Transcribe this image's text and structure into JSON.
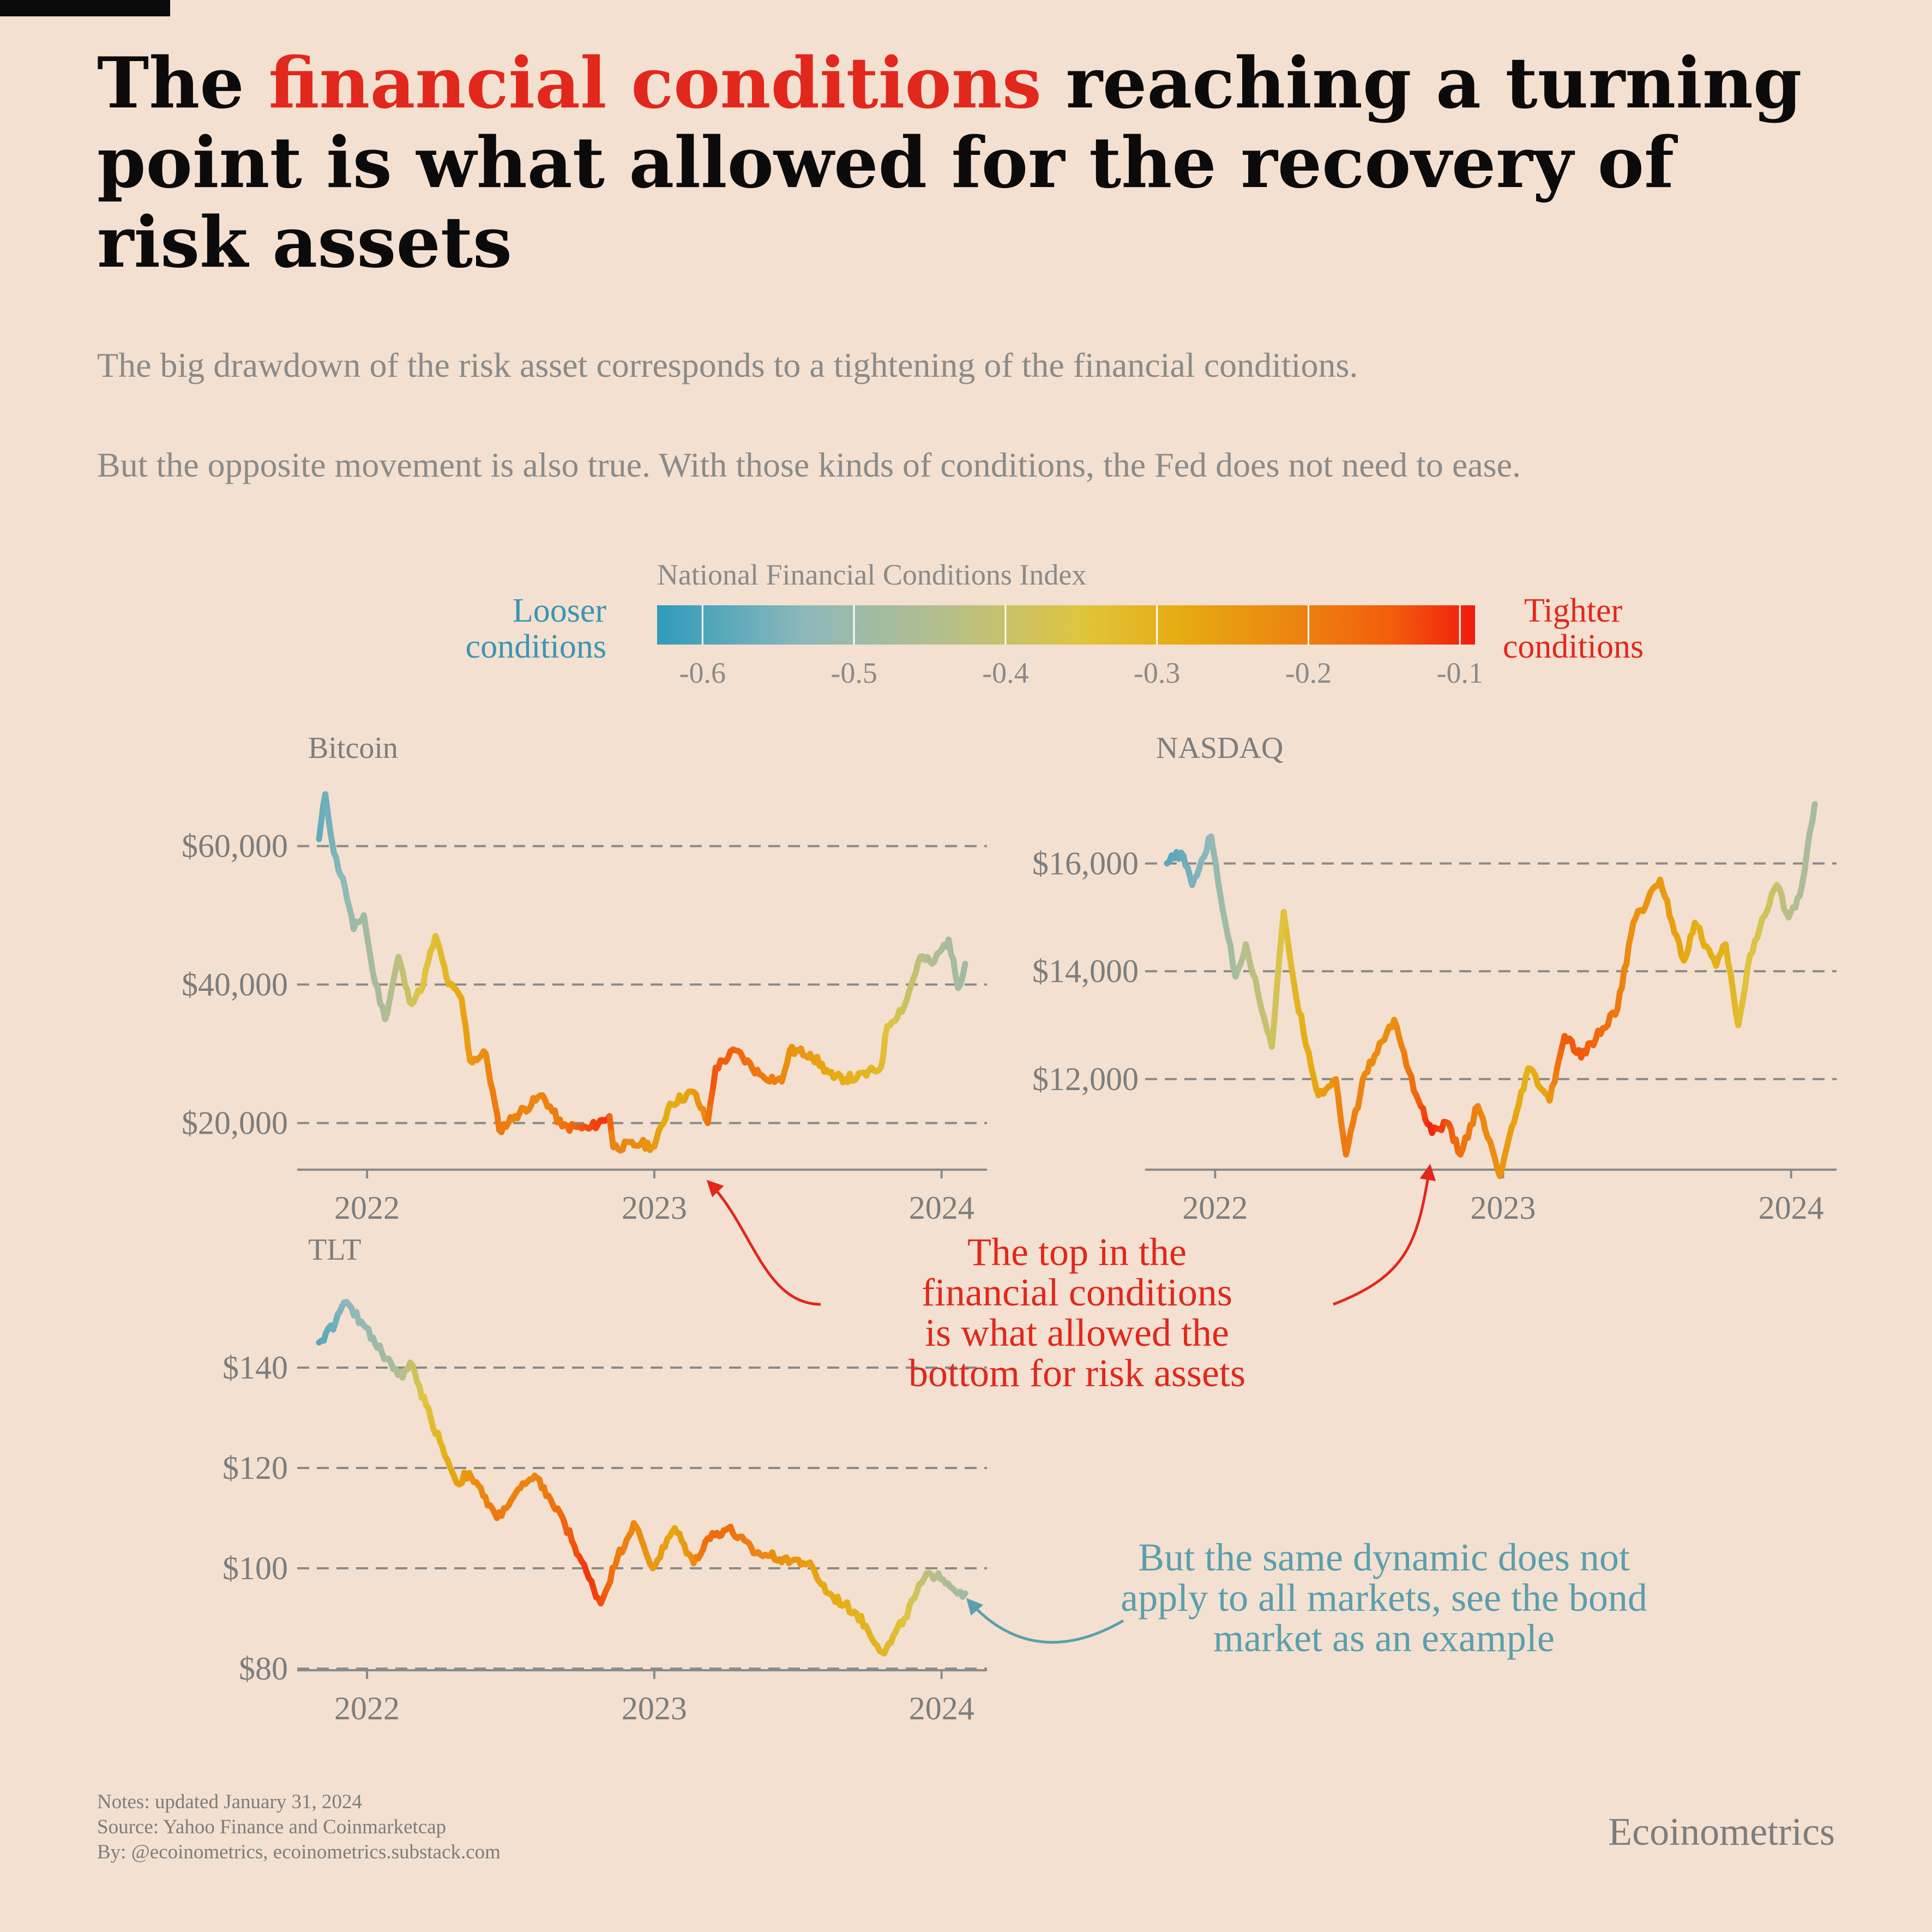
{
  "header": {
    "title_before": "The ",
    "title_highlight": "financial conditions",
    "title_after": " reaching a turning point is what allowed for the recovery of risk assets",
    "subtitle_1": "The big drawdown of the risk asset corresponds to a tightening of the financial conditions.",
    "subtitle_2": "But the opposite movement is also true. With those kinds of conditions, the Fed does not need to ease."
  },
  "colors": {
    "background": "#f3e0d0",
    "highlight_red": "#e2271c",
    "teal": "#5a9fae",
    "loose_label": "#3a95b4",
    "text_gray": "#7d7d7d",
    "scale": [
      "#2f9bbb",
      "#8db8bb",
      "#b7bf88",
      "#e0c43e",
      "#e6ab11",
      "#ec8410",
      "#f25c0c",
      "#f21a0e"
    ]
  },
  "footer": {
    "notes": "Notes: updated January 31, 2024",
    "source": "Source: Yahoo Finance and Coinmarketcap",
    "by": "By: @ecoinometrics, ecoinometrics.substack.com",
    "brand": "Ecoinometrics"
  },
  "chart_data": {
    "type": "line",
    "color_scale": {
      "title": "National Financial Conditions Index",
      "min": -0.63,
      "max": -0.09,
      "ticks": [
        -0.6,
        -0.5,
        -0.4,
        -0.3,
        -0.2,
        -0.1
      ],
      "tick_labels": [
        "-0.6",
        "-0.5",
        "-0.4",
        "-0.3",
        "-0.2",
        "-0.1"
      ],
      "low_label": "Looser conditions",
      "high_label": "Tighter conditions"
    },
    "annotations": {
      "red": "The top in the financial conditions is what allowed the bottom for risk assets",
      "teal": "But the same dynamic does not apply to all markets, see the bond market as an example"
    },
    "panels": [
      {
        "name": "Bitcoin",
        "x_range": [
          "2021-11-01",
          "2024-01-31"
        ],
        "ylim": [
          13500,
          68000
        ],
        "y_ticks": [
          20000,
          40000,
          60000
        ],
        "y_tick_labels": [
          "$20,000",
          "$40,000",
          "$60,000"
        ],
        "x_ticks": [
          "2022-01-01",
          "2023-01-01",
          "2024-01-01"
        ],
        "x_tick_labels": [
          "2022",
          "2023",
          "2024"
        ],
        "series": [
          {
            "date": "2021-11-01",
            "value": 61000,
            "nfci": -0.59
          },
          {
            "date": "2021-11-09",
            "value": 67500,
            "nfci": -0.58
          },
          {
            "date": "2021-11-20",
            "value": 59000,
            "nfci": -0.57
          },
          {
            "date": "2021-12-04",
            "value": 54000,
            "nfci": -0.55
          },
          {
            "date": "2021-12-15",
            "value": 48000,
            "nfci": -0.53
          },
          {
            "date": "2021-12-28",
            "value": 50000,
            "nfci": -0.52
          },
          {
            "date": "2022-01-08",
            "value": 42000,
            "nfci": -0.51
          },
          {
            "date": "2022-01-24",
            "value": 35000,
            "nfci": -0.5
          },
          {
            "date": "2022-02-10",
            "value": 44000,
            "nfci": -0.47
          },
          {
            "date": "2022-02-24",
            "value": 37500,
            "nfci": -0.44
          },
          {
            "date": "2022-03-10",
            "value": 39000,
            "nfci": -0.41
          },
          {
            "date": "2022-03-29",
            "value": 47000,
            "nfci": -0.38
          },
          {
            "date": "2022-04-15",
            "value": 40000,
            "nfci": -0.35
          },
          {
            "date": "2022-05-01",
            "value": 38000,
            "nfci": -0.32
          },
          {
            "date": "2022-05-12",
            "value": 29000,
            "nfci": -0.29
          },
          {
            "date": "2022-06-01",
            "value": 30000,
            "nfci": -0.26
          },
          {
            "date": "2022-06-18",
            "value": 19000,
            "nfci": -0.22
          },
          {
            "date": "2022-07-08",
            "value": 21000,
            "nfci": -0.24
          },
          {
            "date": "2022-08-12",
            "value": 24000,
            "nfci": -0.25
          },
          {
            "date": "2022-09-06",
            "value": 19500,
            "nfci": -0.22
          },
          {
            "date": "2022-10-10",
            "value": 19200,
            "nfci": -0.15
          },
          {
            "date": "2022-11-05",
            "value": 21000,
            "nfci": -0.12
          },
          {
            "date": "2022-11-10",
            "value": 16500,
            "nfci": -0.24
          },
          {
            "date": "2022-12-15",
            "value": 17000,
            "nfci": -0.26
          },
          {
            "date": "2023-01-01",
            "value": 16600,
            "nfci": -0.28
          },
          {
            "date": "2023-01-21",
            "value": 22800,
            "nfci": -0.33
          },
          {
            "date": "2023-02-20",
            "value": 24500,
            "nfci": -0.3
          },
          {
            "date": "2023-03-10",
            "value": 20000,
            "nfci": -0.24
          },
          {
            "date": "2023-03-20",
            "value": 28000,
            "nfci": -0.16
          },
          {
            "date": "2023-04-14",
            "value": 30500,
            "nfci": -0.18
          },
          {
            "date": "2023-05-15",
            "value": 27000,
            "nfci": -0.22
          },
          {
            "date": "2023-06-12",
            "value": 26000,
            "nfci": -0.24
          },
          {
            "date": "2023-06-22",
            "value": 30500,
            "nfci": -0.27
          },
          {
            "date": "2023-07-18",
            "value": 30000,
            "nfci": -0.29
          },
          {
            "date": "2023-08-17",
            "value": 26500,
            "nfci": -0.32
          },
          {
            "date": "2023-09-15",
            "value": 26500,
            "nfci": -0.34
          },
          {
            "date": "2023-10-16",
            "value": 28000,
            "nfci": -0.36
          },
          {
            "date": "2023-10-24",
            "value": 34000,
            "nfci": -0.39
          },
          {
            "date": "2023-11-15",
            "value": 37000,
            "nfci": -0.43
          },
          {
            "date": "2023-12-05",
            "value": 44000,
            "nfci": -0.46
          },
          {
            "date": "2023-12-20",
            "value": 43000,
            "nfci": -0.49
          },
          {
            "date": "2024-01-10",
            "value": 46500,
            "nfci": -0.5
          },
          {
            "date": "2024-01-22",
            "value": 39500,
            "nfci": -0.51
          },
          {
            "date": "2024-01-31",
            "value": 43000,
            "nfci": -0.52
          }
        ]
      },
      {
        "name": "NASDAQ",
        "x_range": [
          "2021-11-01",
          "2024-01-31"
        ],
        "ylim": [
          10350,
          17350
        ],
        "y_ticks": [
          12000,
          14000,
          16000
        ],
        "y_tick_labels": [
          "$12,000",
          "$14,000",
          "$16,000"
        ],
        "x_ticks": [
          "2022-01-01",
          "2023-01-01",
          "2024-01-01"
        ],
        "x_tick_labels": [
          "2022",
          "2023",
          "2024"
        ],
        "series": [
          {
            "date": "2021-11-01",
            "value": 16000,
            "nfci": -0.6
          },
          {
            "date": "2021-11-19",
            "value": 16200,
            "nfci": -0.59
          },
          {
            "date": "2021-12-03",
            "value": 15600,
            "nfci": -0.57
          },
          {
            "date": "2021-12-27",
            "value": 16500,
            "nfci": -0.55
          },
          {
            "date": "2022-01-14",
            "value": 14900,
            "nfci": -0.52
          },
          {
            "date": "2022-01-27",
            "value": 13900,
            "nfci": -0.51
          },
          {
            "date": "2022-02-09",
            "value": 14500,
            "nfci": -0.48
          },
          {
            "date": "2022-03-14",
            "value": 12600,
            "nfci": -0.44
          },
          {
            "date": "2022-03-29",
            "value": 15100,
            "nfci": -0.4
          },
          {
            "date": "2022-04-14",
            "value": 13500,
            "nfci": -0.35
          },
          {
            "date": "2022-05-12",
            "value": 11700,
            "nfci": -0.31
          },
          {
            "date": "2022-06-03",
            "value": 12000,
            "nfci": -0.27
          },
          {
            "date": "2022-06-16",
            "value": 10600,
            "nfci": -0.22
          },
          {
            "date": "2022-07-10",
            "value": 12100,
            "nfci": -0.25
          },
          {
            "date": "2022-08-16",
            "value": 13100,
            "nfci": -0.27
          },
          {
            "date": "2022-09-13",
            "value": 11700,
            "nfci": -0.2
          },
          {
            "date": "2022-10-03",
            "value": 11000,
            "nfci": -0.1
          },
          {
            "date": "2022-10-21",
            "value": 11200,
            "nfci": -0.14
          },
          {
            "date": "2022-11-08",
            "value": 10600,
            "nfci": -0.2
          },
          {
            "date": "2022-11-30",
            "value": 11500,
            "nfci": -0.24
          },
          {
            "date": "2022-12-28",
            "value": 10200,
            "nfci": -0.27
          },
          {
            "date": "2023-01-15",
            "value": 11200,
            "nfci": -0.3
          },
          {
            "date": "2023-02-02",
            "value": 12200,
            "nfci": -0.34
          },
          {
            "date": "2023-03-01",
            "value": 11600,
            "nfci": -0.3
          },
          {
            "date": "2023-03-20",
            "value": 12800,
            "nfci": -0.17
          },
          {
            "date": "2023-04-10",
            "value": 12400,
            "nfci": -0.16
          },
          {
            "date": "2023-05-26",
            "value": 13300,
            "nfci": -0.22
          },
          {
            "date": "2023-06-15",
            "value": 14900,
            "nfci": -0.27
          },
          {
            "date": "2023-07-19",
            "value": 15700,
            "nfci": -0.28
          },
          {
            "date": "2023-08-18",
            "value": 14200,
            "nfci": -0.31
          },
          {
            "date": "2023-09-01",
            "value": 14900,
            "nfci": -0.33
          },
          {
            "date": "2023-09-28",
            "value": 14100,
            "nfci": -0.33
          },
          {
            "date": "2023-10-10",
            "value": 14500,
            "nfci": -0.34
          },
          {
            "date": "2023-10-26",
            "value": 13000,
            "nfci": -0.36
          },
          {
            "date": "2023-11-10",
            "value": 14300,
            "nfci": -0.4
          },
          {
            "date": "2023-12-14",
            "value": 15600,
            "nfci": -0.44
          },
          {
            "date": "2023-12-29",
            "value": 15000,
            "nfci": -0.47
          },
          {
            "date": "2024-01-12",
            "value": 15400,
            "nfci": -0.49
          },
          {
            "date": "2024-01-31",
            "value": 17100,
            "nfci": -0.51
          }
        ]
      },
      {
        "name": "TLT",
        "x_range": [
          "2021-11-01",
          "2024-01-31"
        ],
        "ylim": [
          80,
          155
        ],
        "y_ticks": [
          80,
          100,
          120,
          140
        ],
        "y_tick_labels": [
          "$80",
          "$100",
          "$120",
          "$140"
        ],
        "x_ticks": [
          "2022-01-01",
          "2023-01-01",
          "2024-01-01"
        ],
        "x_tick_labels": [
          "2022",
          "2023",
          "2024"
        ],
        "series": [
          {
            "date": "2021-11-01",
            "value": 145,
            "nfci": -0.6
          },
          {
            "date": "2021-11-22",
            "value": 149,
            "nfci": -0.58
          },
          {
            "date": "2021-12-03",
            "value": 153,
            "nfci": -0.56
          },
          {
            "date": "2021-12-31",
            "value": 148,
            "nfci": -0.54
          },
          {
            "date": "2022-01-20",
            "value": 143,
            "nfci": -0.52
          },
          {
            "date": "2022-02-15",
            "value": 138,
            "nfci": -0.49
          },
          {
            "date": "2022-02-25",
            "value": 141,
            "nfci": -0.46
          },
          {
            "date": "2022-03-23",
            "value": 130,
            "nfci": -0.38
          },
          {
            "date": "2022-04-25",
            "value": 117,
            "nfci": -0.31
          },
          {
            "date": "2022-05-11",
            "value": 119,
            "nfci": -0.28
          },
          {
            "date": "2022-06-15",
            "value": 110,
            "nfci": -0.22
          },
          {
            "date": "2022-07-15",
            "value": 116,
            "nfci": -0.24
          },
          {
            "date": "2022-08-05",
            "value": 118,
            "nfci": -0.25
          },
          {
            "date": "2022-09-09",
            "value": 109,
            "nfci": -0.19
          },
          {
            "date": "2022-10-10",
            "value": 98,
            "nfci": -0.12
          },
          {
            "date": "2022-10-25",
            "value": 93,
            "nfci": -0.14
          },
          {
            "date": "2022-11-15",
            "value": 102,
            "nfci": -0.22
          },
          {
            "date": "2022-12-06",
            "value": 109,
            "nfci": -0.25
          },
          {
            "date": "2022-12-30",
            "value": 100,
            "nfci": -0.28
          },
          {
            "date": "2023-01-27",
            "value": 108,
            "nfci": -0.31
          },
          {
            "date": "2023-02-20",
            "value": 101,
            "nfci": -0.27
          },
          {
            "date": "2023-03-10",
            "value": 106,
            "nfci": -0.2
          },
          {
            "date": "2023-04-05",
            "value": 108,
            "nfci": -0.2
          },
          {
            "date": "2023-05-10",
            "value": 103,
            "nfci": -0.24
          },
          {
            "date": "2023-06-15",
            "value": 102,
            "nfci": -0.27
          },
          {
            "date": "2023-07-15",
            "value": 101,
            "nfci": -0.29
          },
          {
            "date": "2023-08-10",
            "value": 95,
            "nfci": -0.32
          },
          {
            "date": "2023-09-15",
            "value": 91,
            "nfci": -0.34
          },
          {
            "date": "2023-10-20",
            "value": 83,
            "nfci": -0.35
          },
          {
            "date": "2023-11-15",
            "value": 90,
            "nfci": -0.39
          },
          {
            "date": "2023-12-10",
            "value": 98,
            "nfci": -0.45
          },
          {
            "date": "2023-12-28",
            "value": 99,
            "nfci": -0.48
          },
          {
            "date": "2024-01-15",
            "value": 96,
            "nfci": -0.5
          },
          {
            "date": "2024-01-31",
            "value": 95,
            "nfci": -0.52
          }
        ]
      }
    ]
  }
}
